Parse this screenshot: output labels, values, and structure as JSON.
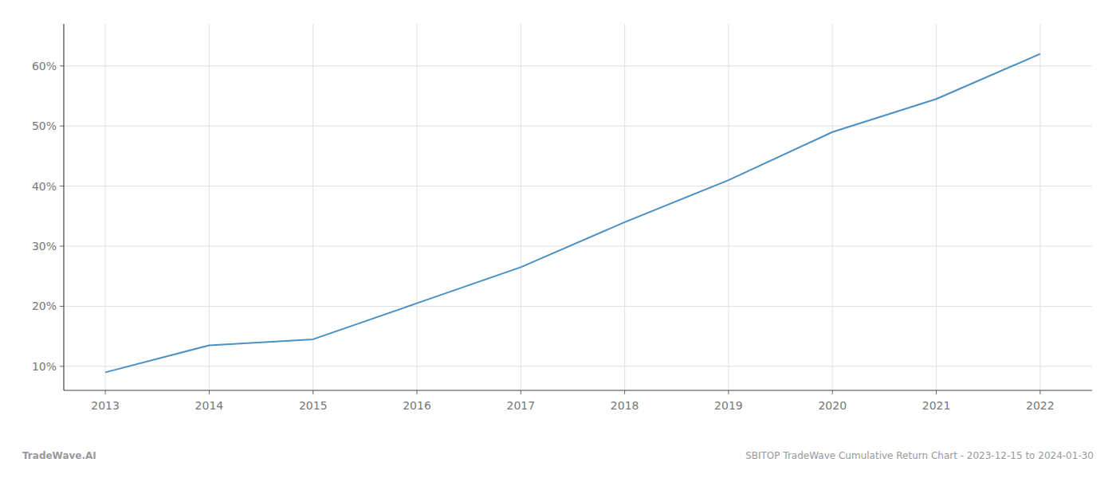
{
  "chart_data": {
    "type": "line",
    "x": [
      2013,
      2014,
      2015,
      2016,
      2017,
      2018,
      2019,
      2020,
      2021,
      2022
    ],
    "values": [
      9.0,
      13.5,
      14.5,
      20.5,
      26.5,
      34.0,
      41.0,
      49.0,
      54.5,
      62.0
    ],
    "color": "#4a90c4",
    "xlim": [
      2012.6,
      2022.5
    ],
    "xticks": [
      2013,
      2014,
      2015,
      2016,
      2017,
      2018,
      2019,
      2020,
      2021,
      2022
    ],
    "ylim": [
      6,
      67
    ],
    "yticks": [
      {
        "value": 10,
        "label": "10%"
      },
      {
        "value": 20,
        "label": "20%"
      },
      {
        "value": 30,
        "label": "30%"
      },
      {
        "value": 40,
        "label": "40%"
      },
      {
        "value": 50,
        "label": "50%"
      },
      {
        "value": 60,
        "label": "60%"
      }
    ],
    "grid": true,
    "annotations": [
      "TradeWave.AI",
      "SBITOP TradeWave Cumulative Return Chart - 2023-12-15 to 2024-01-30"
    ]
  }
}
